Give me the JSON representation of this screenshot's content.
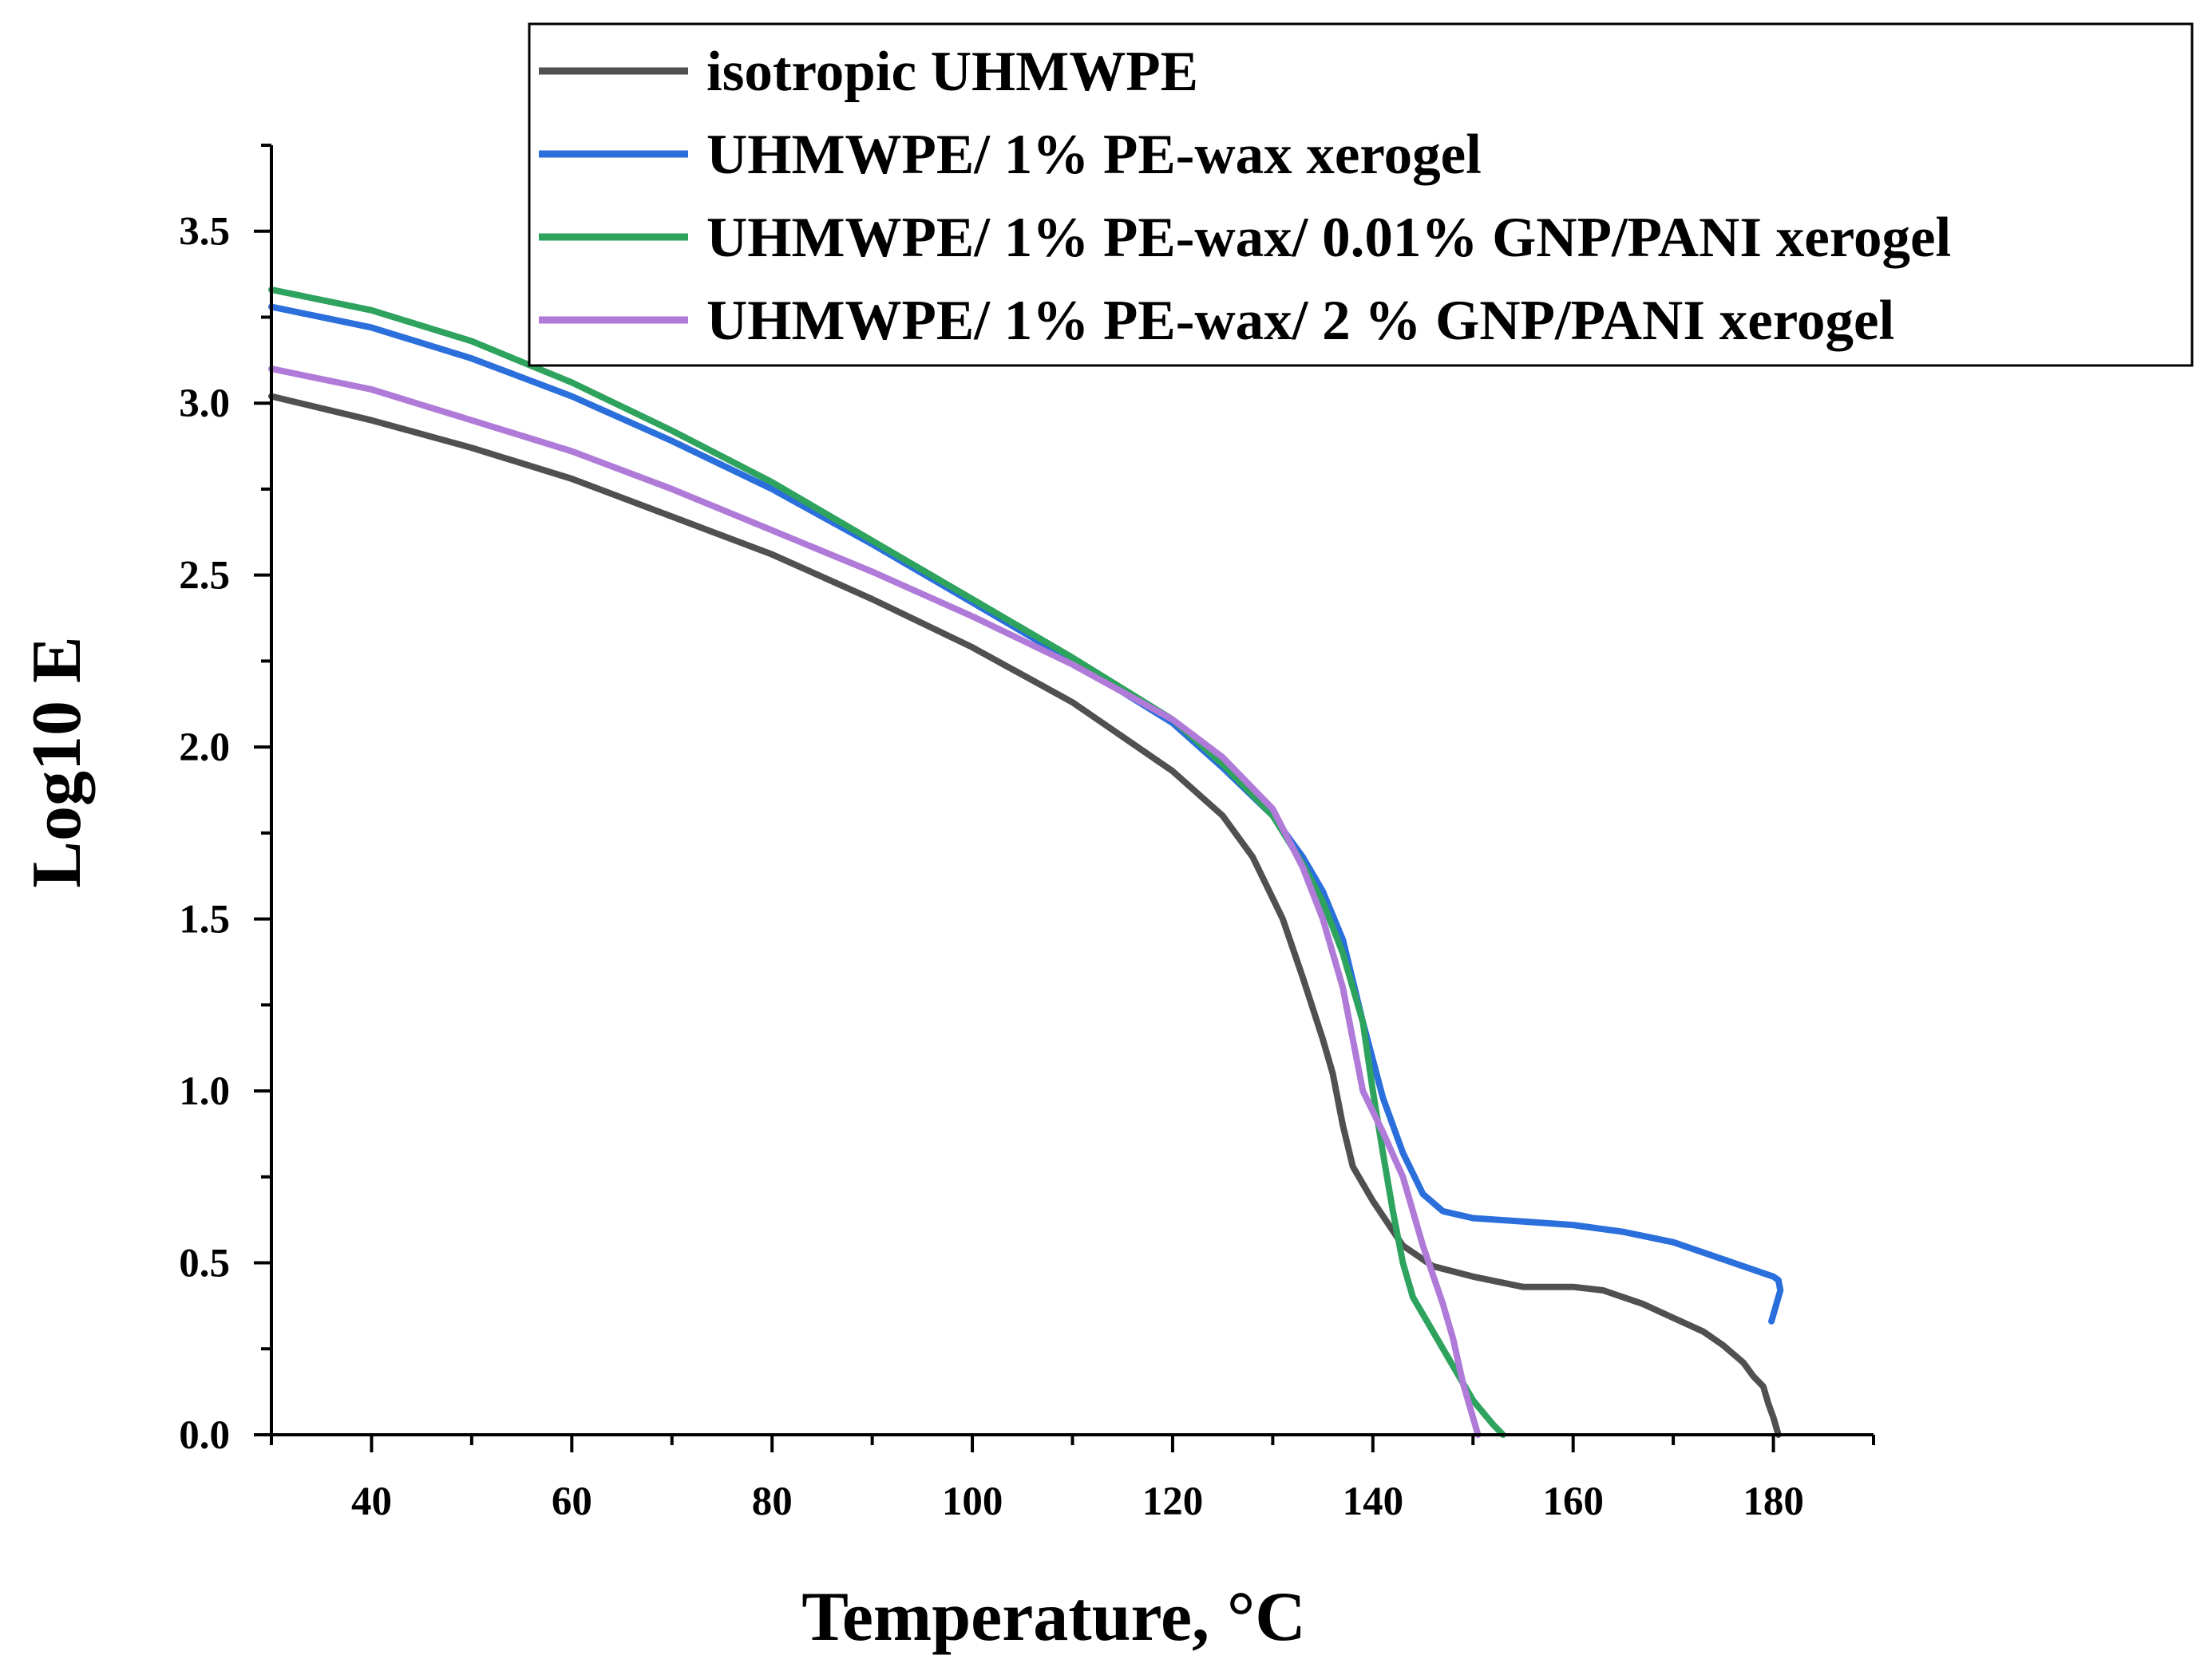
{
  "chart_data": {
    "type": "line",
    "title": "",
    "xlabel": "Temperature, °C",
    "ylabel": "Log10 E",
    "xlim": [
      30,
      190
    ],
    "ylim": [
      0.0,
      3.75
    ],
    "x_ticks": [
      40,
      60,
      80,
      100,
      120,
      140,
      160,
      180
    ],
    "x_tick_labels": [
      "40",
      "60",
      "80",
      "100",
      "120",
      "140",
      "160",
      "180"
    ],
    "x_minor_ticks": [
      30,
      50,
      70,
      90,
      110,
      130,
      150,
      170,
      190
    ],
    "y_ticks": [
      0.0,
      0.5,
      1.0,
      1.5,
      2.0,
      2.5,
      3.0,
      3.5
    ],
    "y_tick_labels": [
      "0.0",
      "0.5",
      "1.0",
      "1.5",
      "2.0",
      "2.5",
      "3.0",
      "3.5"
    ],
    "y_minor_ticks": [
      0.25,
      0.75,
      1.25,
      1.75,
      2.25,
      2.75,
      3.25,
      3.75
    ],
    "grid": false,
    "legend_position": "top-right",
    "series": [
      {
        "name": "isotropic UHMWPE",
        "color": "#505050",
        "x": [
          30,
          40,
          50,
          60,
          70,
          80,
          90,
          100,
          110,
          120,
          125,
          128,
          131,
          133,
          135,
          136,
          137,
          138,
          140,
          143,
          146,
          150,
          155,
          160,
          163,
          167,
          170,
          173,
          175,
          177,
          178,
          179,
          179.5,
          180,
          180.3,
          180.5
        ],
        "y": [
          3.02,
          2.95,
          2.87,
          2.78,
          2.67,
          2.56,
          2.43,
          2.29,
          2.13,
          1.93,
          1.8,
          1.68,
          1.5,
          1.33,
          1.15,
          1.05,
          0.9,
          0.78,
          0.68,
          0.55,
          0.49,
          0.46,
          0.43,
          0.43,
          0.42,
          0.38,
          0.34,
          0.3,
          0.26,
          0.21,
          0.17,
          0.14,
          0.09,
          0.05,
          0.02,
          0.0
        ]
      },
      {
        "name": "UHMWPE/ 1% PE-wax xerogel",
        "color": "#2a6fdb",
        "x": [
          30,
          40,
          50,
          60,
          70,
          80,
          90,
          100,
          110,
          120,
          125,
          130,
          133,
          135,
          137,
          139,
          141,
          143,
          145,
          147,
          150,
          155,
          160,
          165,
          170,
          175,
          178,
          180,
          180.5,
          180.7,
          180.3,
          180.0,
          179.8
        ],
        "y": [
          3.28,
          3.22,
          3.13,
          3.02,
          2.89,
          2.75,
          2.59,
          2.42,
          2.25,
          2.07,
          1.94,
          1.8,
          1.68,
          1.58,
          1.44,
          1.2,
          0.98,
          0.82,
          0.7,
          0.65,
          0.63,
          0.62,
          0.61,
          0.59,
          0.56,
          0.51,
          0.48,
          0.46,
          0.45,
          0.42,
          0.38,
          0.35,
          0.33
        ]
      },
      {
        "name": "UHMWPE/ 1% PE-wax/ 0.01% GNP/PANI xerogel",
        "color": "#2ea35e",
        "x": [
          30,
          40,
          50,
          60,
          70,
          80,
          90,
          100,
          110,
          120,
          125,
          130,
          133,
          135,
          137,
          139,
          140,
          141,
          142,
          143,
          144,
          146,
          148,
          150,
          152,
          153
        ],
        "y": [
          3.33,
          3.27,
          3.18,
          3.06,
          2.92,
          2.77,
          2.6,
          2.43,
          2.26,
          2.08,
          1.95,
          1.8,
          1.66,
          1.55,
          1.4,
          1.2,
          1.0,
          0.82,
          0.65,
          0.5,
          0.4,
          0.3,
          0.2,
          0.1,
          0.03,
          0.0
        ]
      },
      {
        "name": "UHMWPE/ 1% PE-wax/ 2 % GNP/PANI xerogel",
        "color": "#b07ad9",
        "x": [
          30,
          40,
          50,
          60,
          70,
          80,
          90,
          100,
          110,
          120,
          125,
          130,
          133,
          135,
          137,
          138,
          139,
          141,
          143,
          145,
          147,
          148,
          149,
          150,
          150.5
        ],
        "y": [
          3.1,
          3.04,
          2.95,
          2.86,
          2.75,
          2.63,
          2.51,
          2.38,
          2.24,
          2.08,
          1.97,
          1.82,
          1.65,
          1.5,
          1.3,
          1.15,
          1.0,
          0.88,
          0.75,
          0.55,
          0.38,
          0.28,
          0.15,
          0.05,
          0.0
        ]
      }
    ]
  }
}
